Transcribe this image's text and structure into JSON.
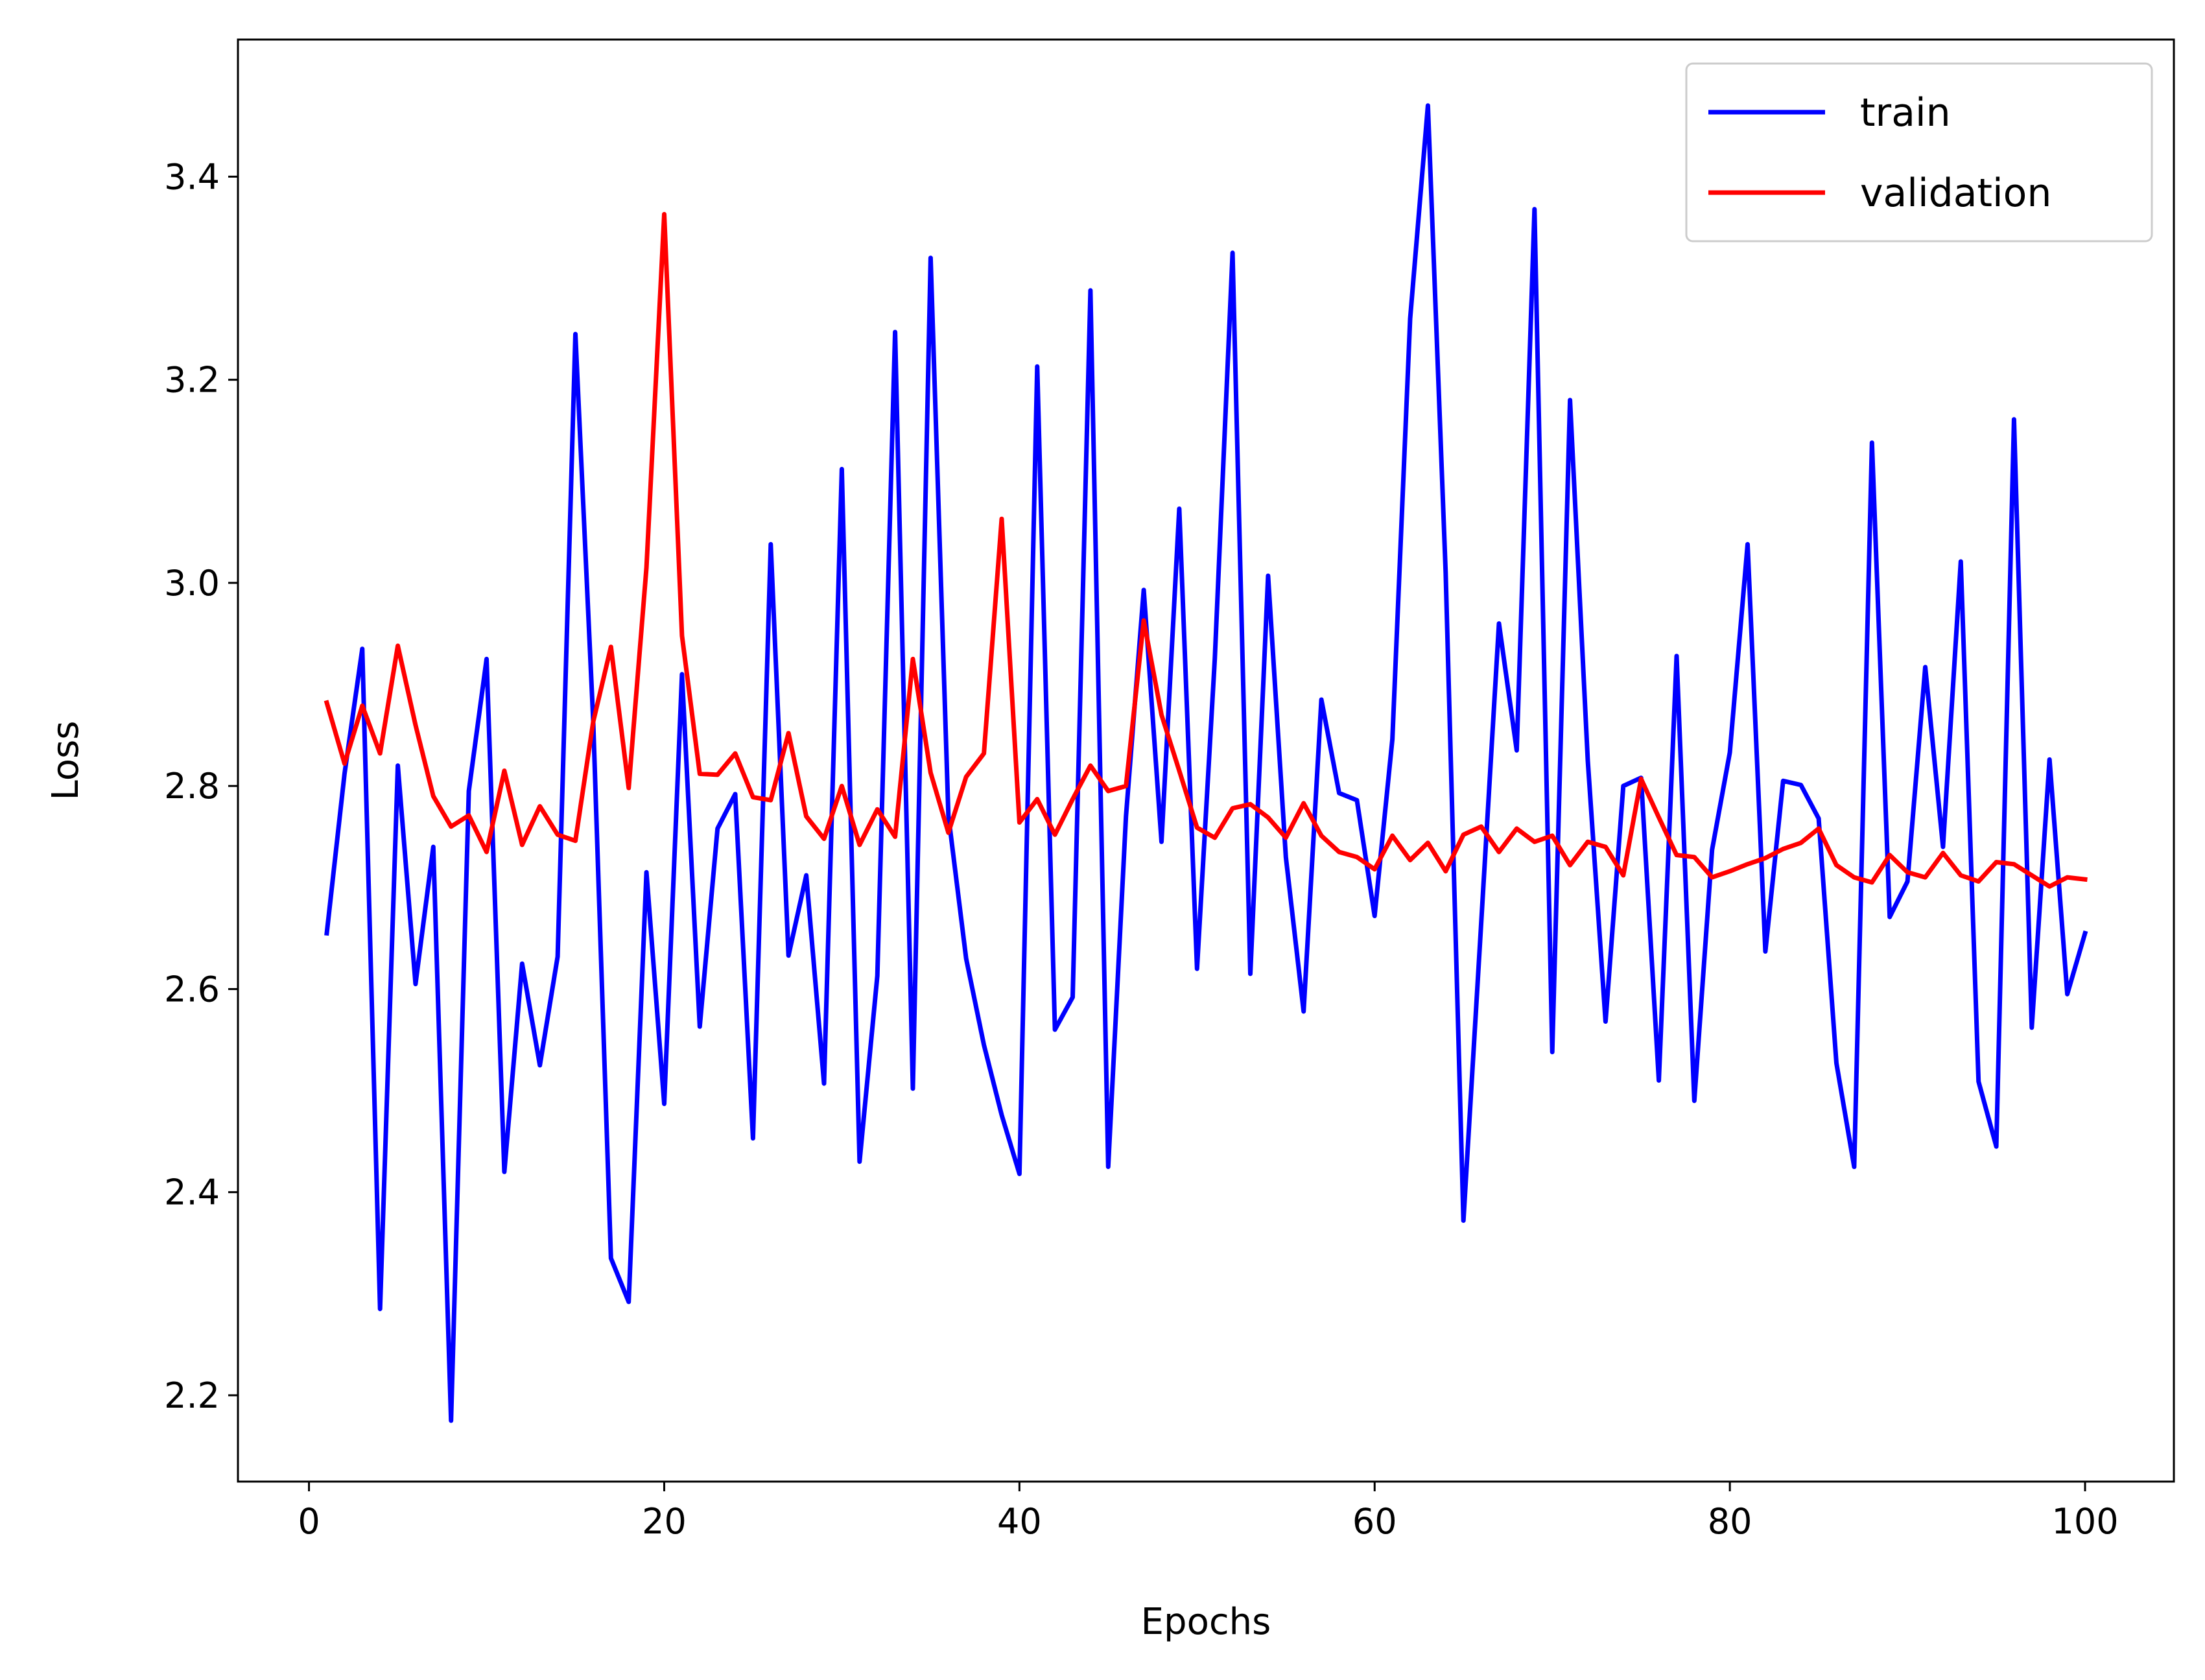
{
  "chart_data": {
    "type": "line",
    "title": "",
    "xlabel": "Epochs",
    "ylabel": "Loss",
    "xlim": [
      -4.0,
      105.0
    ],
    "ylim": [
      2.115,
      3.535
    ],
    "xticks": [
      0,
      20,
      40,
      60,
      80,
      100
    ],
    "xtick_labels": [
      "0",
      "20",
      "40",
      "60",
      "80",
      "100"
    ],
    "yticks": [
      2.2,
      2.4,
      2.6,
      2.8,
      3.0,
      3.2,
      3.4
    ],
    "ytick_labels": [
      "2.2",
      "2.4",
      "2.6",
      "2.8",
      "3.0",
      "3.2",
      "3.4"
    ],
    "grid": false,
    "legend_position": "upper right",
    "x": [
      1,
      2,
      3,
      4,
      5,
      6,
      7,
      8,
      9,
      10,
      11,
      12,
      13,
      14,
      15,
      16,
      17,
      18,
      19,
      20,
      21,
      22,
      23,
      24,
      25,
      26,
      27,
      28,
      29,
      30,
      31,
      32,
      33,
      34,
      35,
      36,
      37,
      38,
      39,
      40,
      41,
      42,
      43,
      44,
      45,
      46,
      47,
      48,
      49,
      50,
      51,
      52,
      53,
      54,
      55,
      56,
      57,
      58,
      59,
      60,
      61,
      62,
      63,
      64,
      65,
      66,
      67,
      68,
      69,
      70,
      71,
      72,
      73,
      74,
      75,
      76,
      77,
      78,
      79,
      80,
      81,
      82,
      83,
      84,
      85,
      86,
      87,
      88,
      89,
      90,
      91,
      92,
      93,
      94,
      95,
      96,
      97,
      98,
      99,
      100
    ],
    "series": [
      {
        "name": "train",
        "color": "#0000ff",
        "values": [
          2.655,
          2.812,
          2.935,
          2.285,
          2.82,
          2.605,
          2.74,
          2.175,
          2.795,
          2.925,
          2.42,
          2.625,
          2.525,
          2.632,
          3.245,
          2.865,
          2.335,
          2.292,
          2.715,
          2.487,
          2.91,
          2.563,
          2.758,
          2.792,
          2.453,
          3.038,
          2.633,
          2.712,
          2.507,
          3.112,
          2.43,
          2.613,
          3.247,
          2.502,
          3.32,
          2.771,
          2.63,
          2.545,
          2.476,
          2.418,
          3.213,
          2.56,
          2.592,
          3.288,
          2.425,
          2.77,
          2.993,
          2.745,
          3.073,
          2.62,
          2.925,
          3.325,
          2.615,
          3.007,
          2.73,
          2.578,
          2.885,
          2.793,
          2.786,
          2.672,
          2.846,
          3.26,
          3.47,
          3.01,
          2.372,
          2.665,
          2.96,
          2.835,
          3.368,
          2.538,
          3.18,
          2.825,
          2.568,
          2.8,
          2.808,
          2.51,
          2.928,
          2.49,
          2.737,
          2.833,
          3.038,
          2.637,
          2.805,
          2.801,
          2.768,
          2.527,
          2.425,
          3.138,
          2.671,
          2.706,
          2.917,
          2.74,
          3.021,
          2.509,
          2.445,
          3.161,
          2.562,
          2.826,
          2.595,
          2.655
        ]
      },
      {
        "name": "validation",
        "color": "#ff0000",
        "values": [
          2.882,
          2.822,
          2.879,
          2.832,
          2.938,
          2.86,
          2.79,
          2.76,
          2.771,
          2.735,
          2.815,
          2.742,
          2.78,
          2.752,
          2.746,
          2.863,
          2.937,
          2.798,
          3.015,
          3.363,
          2.948,
          2.812,
          2.811,
          2.832,
          2.789,
          2.786,
          2.852,
          2.77,
          2.748,
          2.8,
          2.742,
          2.777,
          2.75,
          2.925,
          2.813,
          2.754,
          2.809,
          2.832,
          3.063,
          2.764,
          2.787,
          2.752,
          2.787,
          2.82,
          2.795,
          2.8,
          2.963,
          2.87,
          2.815,
          2.759,
          2.749,
          2.778,
          2.782,
          2.769,
          2.749,
          2.783,
          2.751,
          2.735,
          2.73,
          2.718,
          2.751,
          2.727,
          2.744,
          2.716,
          2.752,
          2.76,
          2.735,
          2.758,
          2.745,
          2.751,
          2.722,
          2.745,
          2.74,
          2.712,
          2.807,
          2.769,
          2.732,
          2.73,
          2.71,
          2.716,
          2.723,
          2.729,
          2.738,
          2.744,
          2.758,
          2.722,
          2.71,
          2.705,
          2.732,
          2.715,
          2.71,
          2.734,
          2.712,
          2.706,
          2.725,
          2.723,
          2.712,
          2.701,
          2.71,
          2.708
        ]
      }
    ]
  }
}
